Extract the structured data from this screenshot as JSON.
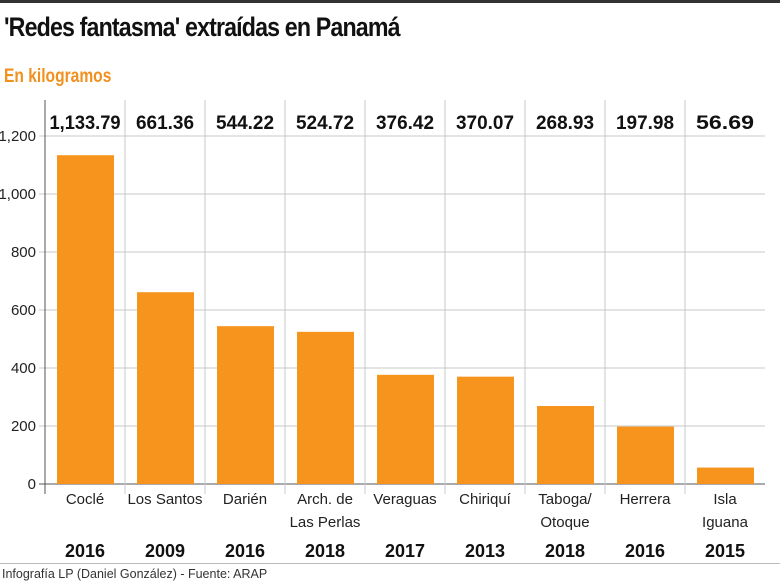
{
  "title": "'Redes fantasma' extraídas en  Panamá",
  "subtitle": "En kilogramos",
  "footer": "Infografía LP (Daniel González) - Fuente: ARAP",
  "chart_data": {
    "type": "bar",
    "title": "'Redes fantasma' extraídas en  Panamá",
    "ylabel": "En kilogramos",
    "categories": [
      [
        "Coclé"
      ],
      [
        "Los Santos"
      ],
      [
        "Darién"
      ],
      [
        "Arch. de",
        "Las Perlas"
      ],
      [
        "Veraguas"
      ],
      [
        "Chiriquí"
      ],
      [
        "Taboga/",
        "Otoque"
      ],
      [
        "Herrera"
      ],
      [
        "Isla",
        "Iguana"
      ]
    ],
    "years": [
      "2016",
      "2009",
      "2016",
      "2018",
      "2017",
      "2013",
      "2018",
      "2016",
      "2015"
    ],
    "values": [
      1133.79,
      661.36,
      544.22,
      524.72,
      376.42,
      370.07,
      268.93,
      197.98,
      56.69
    ],
    "value_labels": [
      "1,133.79",
      "661.36",
      "544.22",
      "524.72",
      "376.42",
      "370.07",
      "268.93",
      "197.98",
      "56.69"
    ],
    "ylim": [
      0,
      1200
    ],
    "yticks": [
      0,
      200,
      400,
      600,
      800,
      1000,
      1200
    ],
    "ytick_labels": [
      "0",
      "200",
      "400",
      "600",
      "800",
      "1,000",
      "1,200"
    ],
    "grid": true,
    "bar_color": "#f7941d"
  }
}
